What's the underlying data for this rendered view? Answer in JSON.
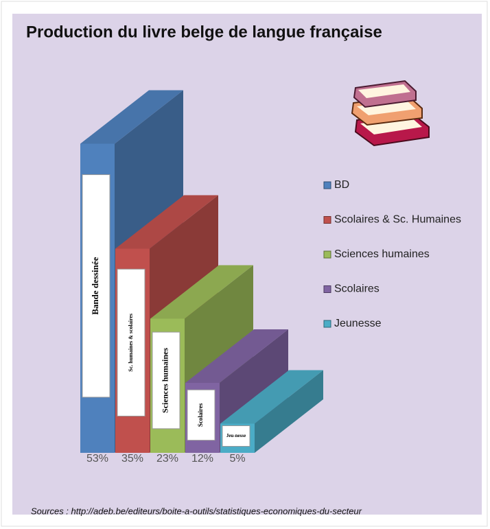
{
  "chart_data": {
    "type": "bar3d",
    "title": "Production du livre belge de langue française",
    "categories": [
      "BD",
      "Scolaires & Sc. Humaines",
      "Sciences humaines",
      "Scolaires",
      "Jeunesse"
    ],
    "values": [
      53,
      35,
      23,
      12,
      5
    ],
    "value_labels": [
      "53%",
      "35%",
      "23%",
      "12%",
      "5%"
    ],
    "bar_labels": [
      "Bande dessinée",
      "Sc. humaines & scolaires",
      "Sciences humaines",
      "Scolaires",
      "Jeu-nesse"
    ],
    "colors": [
      "#4f81bd",
      "#c0504d",
      "#9bbb59",
      "#8064a2",
      "#4bacc6"
    ],
    "source": "Sources : http://adeb.be/editeurs/boite-a-outils/statistiques-economiques-du-secteur"
  }
}
